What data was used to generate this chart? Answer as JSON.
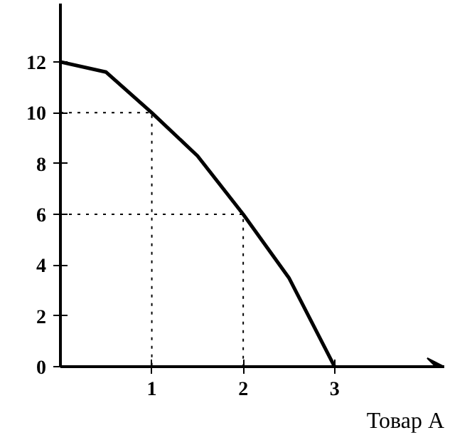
{
  "chart_data": {
    "type": "line",
    "xlabel": "Товар A",
    "x": [
      0,
      0.5,
      1,
      1.5,
      2,
      2.5,
      3
    ],
    "series": [
      {
        "color": "#000000",
        "values": [
          12,
          11.6,
          10,
          8.3,
          6,
          3.5,
          0
        ]
      },
      {
        "type": "line",
        "color": "#000000",
        "line_style": "dotted",
        "x": [
          0,
          1,
          1
        ],
        "values": [
          10,
          10,
          0
        ]
      },
      {
        "type": "line",
        "color": "#000000",
        "line_style": "dotted",
        "x": [
          0,
          2,
          2
        ],
        "values": [
          6,
          6,
          0
        ]
      }
    ],
    "xlim": [
      0,
      4.2
    ],
    "ylim": [
      0,
      14.3
    ],
    "xticks": [
      1,
      2,
      3
    ],
    "yticks": [
      0,
      2,
      4,
      6,
      8,
      10,
      12
    ],
    "grid": false,
    "marker": "none",
    "line_style": "solid"
  }
}
